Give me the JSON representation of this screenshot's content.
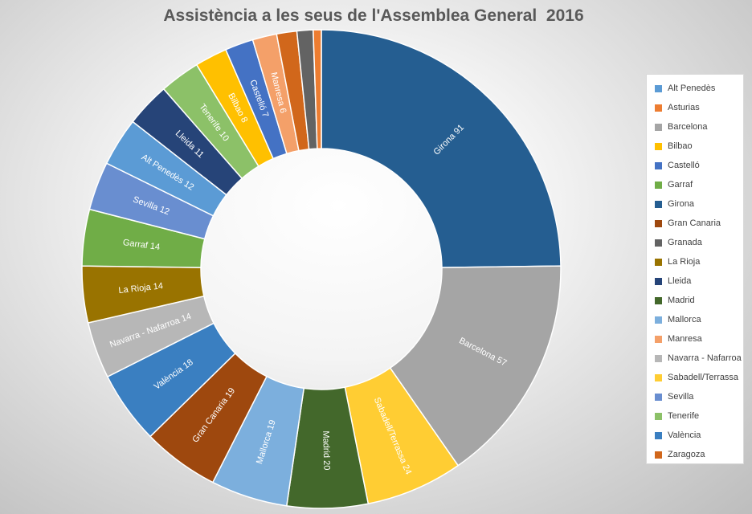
{
  "chart_data": {
    "type": "pie",
    "title": "Assistència a les seus de l'Assemblea General  2016",
    "legend_position": "right",
    "slices": [
      {
        "name": "Girona",
        "value": 91,
        "color": "#255E91",
        "label": "Girona 91"
      },
      {
        "name": "Barcelona",
        "value": 57,
        "color": "#A5A5A5",
        "label": "Barcelona 57"
      },
      {
        "name": "Sabadell/Terrassa",
        "value": 24,
        "color": "#FFCD33",
        "label": "Sabadell/Terrassa 24"
      },
      {
        "name": "Madrid",
        "value": 20,
        "color": "#43682B",
        "label": "Madrid 20"
      },
      {
        "name": "Mallorca",
        "value": 19,
        "color": "#7CAFDD",
        "label": "Mallorca 19"
      },
      {
        "name": "Gran Canaria",
        "value": 19,
        "color": "#9E480E",
        "label": "Gran Canaria 19"
      },
      {
        "name": "València",
        "value": 18,
        "color": "#3A7FC1",
        "label": "València 18"
      },
      {
        "name": "Navarra - Nafarroa",
        "value": 14,
        "color": "#B7B7B7",
        "label": "Navarra - Nafarroa 14"
      },
      {
        "name": "La Rioja",
        "value": 14,
        "color": "#997300",
        "label": "La Rioja 14"
      },
      {
        "name": "Garraf",
        "value": 14,
        "color": "#70AD47",
        "label": "Garraf 14"
      },
      {
        "name": "Sevilla",
        "value": 12,
        "color": "#698ED0",
        "label": "Sevilla 12"
      },
      {
        "name": "Alt Penedès",
        "value": 12,
        "color": "#5B9BD5",
        "label": "Alt Penedès 12"
      },
      {
        "name": "Lleida",
        "value": 11,
        "color": "#264478",
        "label": "Lleida 11"
      },
      {
        "name": "Tenerife",
        "value": 10,
        "color": "#8CC168",
        "label": "Tenerife 10"
      },
      {
        "name": "Bilbao",
        "value": 8,
        "color": "#FFC000",
        "label": "Bilbao 8"
      },
      {
        "name": "Castelló",
        "value": 7,
        "color": "#4472C4",
        "label": "Castelló 7"
      },
      {
        "name": "Manresa",
        "value": 6,
        "color": "#F4A069",
        "label": "Manresa 6"
      },
      {
        "name": "Zaragoza",
        "value": 5,
        "color": "#D1671B",
        "label": ""
      },
      {
        "name": "Granada",
        "value": 4,
        "color": "#636363",
        "label": ""
      },
      {
        "name": "Asturias",
        "value": 2,
        "color": "#ED7D31",
        "label": ""
      }
    ],
    "legend": [
      {
        "name": "Alt Penedès",
        "color": "#5B9BD5"
      },
      {
        "name": "Asturias",
        "color": "#ED7D31"
      },
      {
        "name": "Barcelona",
        "color": "#A5A5A5"
      },
      {
        "name": "Bilbao",
        "color": "#FFC000"
      },
      {
        "name": "Castelló",
        "color": "#4472C4"
      },
      {
        "name": "Garraf",
        "color": "#70AD47"
      },
      {
        "name": "Girona",
        "color": "#255E91"
      },
      {
        "name": "Gran Canaria",
        "color": "#9E480E"
      },
      {
        "name": "Granada",
        "color": "#636363"
      },
      {
        "name": "La Rioja",
        "color": "#997300"
      },
      {
        "name": "Lleida",
        "color": "#264478"
      },
      {
        "name": "Madrid",
        "color": "#43682B"
      },
      {
        "name": "Mallorca",
        "color": "#7CAFDD"
      },
      {
        "name": "Manresa",
        "color": "#F4A069"
      },
      {
        "name": "Navarra - Nafarroa",
        "color": "#B7B7B7"
      },
      {
        "name": "Sabadell/Terrassa",
        "color": "#FFCD33"
      },
      {
        "name": "Sevilla",
        "color": "#698ED0"
      },
      {
        "name": "Tenerife",
        "color": "#8CC168"
      },
      {
        "name": "València",
        "color": "#3A7FC1"
      },
      {
        "name": "Zaragoza",
        "color": "#D1671B"
      }
    ]
  }
}
